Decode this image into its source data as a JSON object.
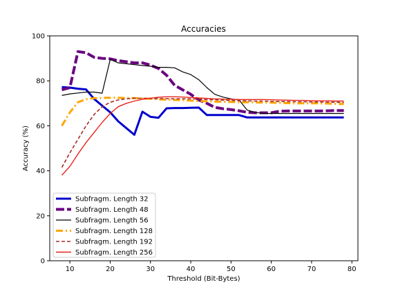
{
  "chart_data": {
    "type": "line",
    "title": "Accuracies",
    "xlabel": "Threshold (Bit-Bytes)",
    "ylabel": "Accuracy (%)",
    "xlim": [
      5,
      81.5
    ],
    "ylim": [
      0,
      100
    ],
    "xticks": [
      10,
      20,
      30,
      40,
      50,
      60,
      70,
      80
    ],
    "yticks": [
      0,
      20,
      40,
      60,
      80,
      100
    ],
    "grid": false,
    "legend_position": "lower-left",
    "series": [
      {
        "name": "Subfragm. Length 32",
        "color": "#0000cc",
        "style": "solid-thick",
        "x": [
          8,
          10,
          12,
          14,
          16,
          18,
          20,
          22,
          24,
          26,
          28,
          30,
          32,
          34,
          36,
          38,
          40,
          42,
          44,
          46,
          48,
          50,
          52,
          54,
          56,
          58,
          60,
          62,
          64,
          66,
          68,
          70,
          72,
          74,
          76,
          78
        ],
        "y": [
          77.2,
          77,
          76.5,
          76.2,
          72,
          69,
          66,
          62,
          59,
          56,
          66.3,
          64,
          63.6,
          67.8,
          67.9,
          67.9,
          68,
          68.1,
          64.8,
          64.8,
          64.8,
          64.8,
          64.8,
          63.7,
          63.7,
          63.7,
          63.7,
          63.7,
          63.7,
          63.7,
          63.7,
          63.7,
          63.7,
          63.7,
          63.7,
          63.7
        ]
      },
      {
        "name": "Subfragm. Length 48",
        "color": "#6a0080",
        "style": "dashed-thick",
        "x": [
          8,
          10,
          12,
          14,
          16,
          18,
          20,
          22,
          24,
          26,
          28,
          30,
          32,
          34,
          36,
          38,
          40,
          42,
          44,
          46,
          48,
          50,
          52,
          54,
          56,
          58,
          60,
          62,
          64,
          66,
          68,
          70,
          72,
          74,
          76,
          78
        ],
        "y": [
          76,
          77,
          93,
          92.5,
          90.5,
          90,
          89.8,
          89,
          88.5,
          88,
          88,
          87,
          85.5,
          82.5,
          78,
          76,
          74,
          71.5,
          70,
          68.2,
          67.6,
          67.2,
          66.7,
          66,
          65.8,
          65.8,
          65.8,
          66.5,
          66.6,
          66.6,
          66.6,
          66.6,
          66.6,
          66.7,
          66.8,
          66.8
        ]
      },
      {
        "name": "Subfragm. Length 56",
        "color": "#000000",
        "style": "solid-thin",
        "x": [
          8,
          10,
          12,
          14,
          16,
          18,
          20,
          22,
          24,
          26,
          28,
          30,
          32,
          34,
          36,
          38,
          40,
          42,
          44,
          46,
          48,
          50,
          52,
          54,
          56,
          58,
          60,
          62,
          64,
          66,
          68,
          70,
          72,
          74,
          76,
          78
        ],
        "y": [
          73.5,
          74.2,
          74.6,
          75,
          75,
          74.5,
          89.5,
          88,
          87.6,
          87.2,
          86.8,
          86.5,
          86,
          86,
          85.8,
          84,
          82.8,
          80.5,
          77,
          74,
          72.8,
          72,
          71.5,
          67,
          66,
          65.5,
          65.5,
          65.5,
          65.5,
          65.5,
          65.5,
          65.5,
          65.5,
          65.5,
          65.5,
          65.5
        ]
      },
      {
        "name": "Subfragm. Length 128",
        "color": "#ffa500",
        "style": "dashdot-thick",
        "x": [
          8,
          10,
          12,
          14,
          16,
          18,
          20,
          22,
          24,
          26,
          28,
          30,
          32,
          34,
          36,
          38,
          40,
          42,
          44,
          46,
          48,
          50,
          52,
          54,
          56,
          58,
          60,
          62,
          64,
          66,
          68,
          70,
          72,
          74,
          76,
          78
        ],
        "y": [
          60,
          66,
          70.5,
          71.8,
          72.3,
          72.4,
          72.5,
          72.5,
          72.4,
          72.3,
          72.2,
          72,
          71.8,
          71.6,
          71.5,
          71.4,
          71.2,
          71,
          70.9,
          70.8,
          70.7,
          70.6,
          70.5,
          70.5,
          70.4,
          70.3,
          70.3,
          70.2,
          70.1,
          70,
          70,
          70,
          70,
          69.9,
          69.8,
          69.7
        ]
      },
      {
        "name": "Subfragm. Length 192",
        "color": "#a52a2a",
        "style": "dashed",
        "x": [
          8,
          10,
          12,
          14,
          16,
          18,
          20,
          22,
          24,
          26,
          28,
          30,
          32,
          34,
          36,
          38,
          40,
          42,
          44,
          46,
          48,
          50,
          52,
          54,
          56,
          58,
          60,
          62,
          64,
          66,
          68,
          70,
          72,
          74,
          76,
          78
        ],
        "y": [
          41.5,
          48,
          54,
          60,
          65,
          68.5,
          70.5,
          71.5,
          72,
          72.3,
          72.2,
          72.2,
          72.1,
          72.1,
          72,
          72,
          72,
          71.9,
          71.7,
          71.6,
          71.4,
          71.3,
          71.2,
          71.1,
          71,
          71,
          70.9,
          70.8,
          70.8,
          70.7,
          70.7,
          70.6,
          70.6,
          70.5,
          70.5,
          70.4
        ]
      },
      {
        "name": "Subfragm. Length 256",
        "color": "#e8231a",
        "style": "solid",
        "x": [
          8,
          10,
          12,
          14,
          16,
          18,
          20,
          22,
          24,
          26,
          28,
          30,
          32,
          34,
          36,
          38,
          40,
          42,
          44,
          46,
          48,
          50,
          52,
          54,
          56,
          58,
          60,
          62,
          64,
          66,
          68,
          70,
          72,
          74,
          76,
          78
        ],
        "y": [
          38,
          42,
          47.5,
          52.5,
          57,
          61.5,
          65.5,
          68.5,
          70,
          71,
          71.8,
          72.3,
          72.7,
          72.9,
          72.9,
          72.8,
          72.6,
          72.4,
          72.2,
          72,
          71.9,
          71.8,
          71.7,
          71.7,
          71.7,
          71.7,
          71.6,
          71.5,
          71.4,
          71.3,
          71.3,
          71.2,
          71.1,
          71.1,
          71,
          71
        ]
      }
    ]
  }
}
